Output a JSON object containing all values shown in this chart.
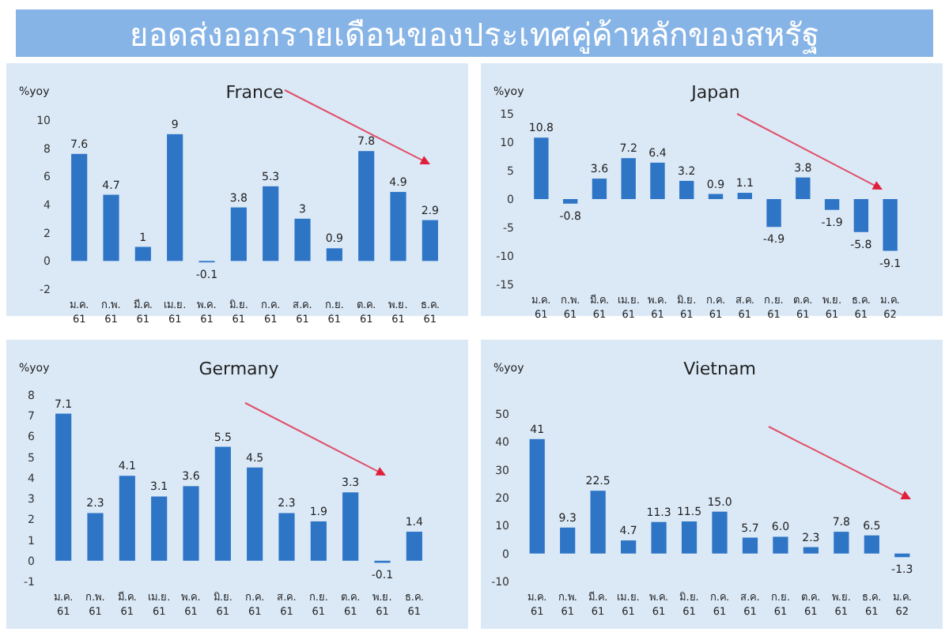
{
  "chart_data": [
    {
      "type": "other",
      "title": "ยอดส่งออกรายเดือนของประเทศคู่ค้าหลักของสหรัฐ"
    },
    {
      "type": "bar",
      "title": "France",
      "ylabel": "%yoy",
      "categories": [
        "ม.ค. 61",
        "ก.พ. 61",
        "มี.ค. 61",
        "เม.ย. 61",
        "พ.ค. 61",
        "มิ.ย. 61",
        "ก.ค. 61",
        "ส.ค. 61",
        "ก.ย. 61",
        "ต.ค. 61",
        "พ.ย. 61",
        "ธ.ค. 61"
      ],
      "values": [
        7.6,
        4.7,
        1,
        9,
        -0.1,
        3.8,
        5.3,
        3,
        0.9,
        7.8,
        4.9,
        2.9
      ],
      "color": "#2e75c6",
      "data_labels": true,
      "ylim": [
        -2,
        10
      ],
      "yticks": [
        -2,
        0,
        2,
        4,
        6,
        8,
        10
      ]
    },
    {
      "type": "bar",
      "title": "Japan",
      "ylabel": "%yoy",
      "categories": [
        "ม.ค. 61",
        "ก.พ. 61",
        "มี.ค. 61",
        "เม.ย. 61",
        "พ.ค. 61",
        "มิ.ย. 61",
        "ก.ค. 61",
        "ส.ค. 61",
        "ก.ย. 61",
        "ต.ค. 61",
        "พ.ย. 61",
        "ธ.ค. 61",
        "ม.ค. 62"
      ],
      "values": [
        10.8,
        -0.8,
        3.6,
        7.2,
        6.4,
        3.2,
        0.9,
        1.1,
        -4.9,
        3.8,
        -1.9,
        -5.8,
        -9.1
      ],
      "color": "#2e75c6",
      "data_labels": true,
      "ylim": [
        -15,
        15
      ],
      "yticks": [
        -15,
        -10,
        -5,
        0,
        5,
        10,
        15
      ]
    },
    {
      "type": "bar",
      "title": "Germany",
      "ylabel": "%yoy",
      "categories": [
        "ม.ค. 61",
        "ก.พ. 61",
        "มี.ค. 61",
        "เม.ย. 61",
        "พ.ค. 61",
        "มิ.ย. 61",
        "ก.ค. 61",
        "ส.ค. 61",
        "ก.ย. 61",
        "ต.ค. 61",
        "พ.ย. 61",
        "ธ.ค. 61"
      ],
      "values": [
        7.1,
        2.3,
        4.1,
        3.1,
        3.6,
        5.5,
        4.5,
        2.3,
        1.9,
        3.3,
        -0.1,
        1.4
      ],
      "color": "#2e75c6",
      "data_labels": true,
      "ylim": [
        -1,
        8
      ],
      "yticks": [
        -1,
        0,
        1,
        2,
        3,
        4,
        5,
        6,
        7,
        8
      ]
    },
    {
      "type": "bar",
      "title": "Vietnam",
      "ylabel": "%yoy",
      "categories": [
        "ม.ค. 61",
        "ก.พ. 61",
        "มี.ค. 61",
        "เม.ย. 61",
        "พ.ค. 61",
        "มิ.ย. 61",
        "ก.ค. 61",
        "ส.ค. 61",
        "ก.ย. 61",
        "ต.ค. 61",
        "พ.ย. 61",
        "ธ.ค. 61",
        "ม.ค. 62"
      ],
      "values": [
        41,
        9.3,
        22.5,
        4.7,
        11.3,
        11.5,
        15.0,
        5.7,
        6.0,
        2.3,
        7.8,
        6.5,
        -1.3
      ],
      "value_labels": [
        "41",
        "9.3",
        "22.5",
        "4.7",
        "11.3",
        "11.5",
        "15.0",
        "5.7",
        "6.0",
        "2.3",
        "7.8",
        "6.5",
        "-1.3"
      ],
      "color": "#2e75c6",
      "ylim": [
        -10,
        50
      ],
      "yticks": [
        -10,
        0,
        10,
        20,
        30,
        40,
        50
      ]
    }
  ]
}
